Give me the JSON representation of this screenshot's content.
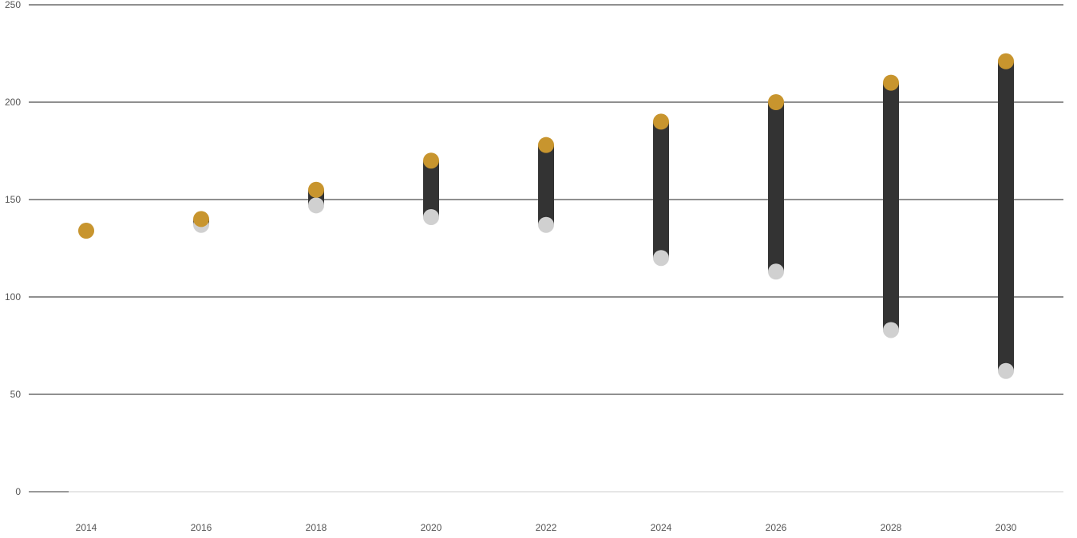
{
  "chart_data": {
    "type": "dumbbell",
    "title": "",
    "xlabel": "",
    "ylabel": "",
    "categories": [
      "2014",
      "2016",
      "2018",
      "2020",
      "2022",
      "2024",
      "2026",
      "2028",
      "2030"
    ],
    "series": [
      {
        "values": [
          134,
          140,
          155,
          170,
          178,
          190,
          200,
          210,
          221
        ],
        "color": "#c8952e"
      },
      {
        "values": [
          134,
          137,
          147,
          141,
          137,
          120,
          113,
          83,
          62
        ],
        "color": "#d0d0d0"
      }
    ],
    "range_bar_color": "#333333",
    "ylim": [
      0,
      250
    ],
    "yticks": [
      0,
      50,
      100,
      150,
      200,
      250
    ],
    "grid": true,
    "legend": "none"
  }
}
